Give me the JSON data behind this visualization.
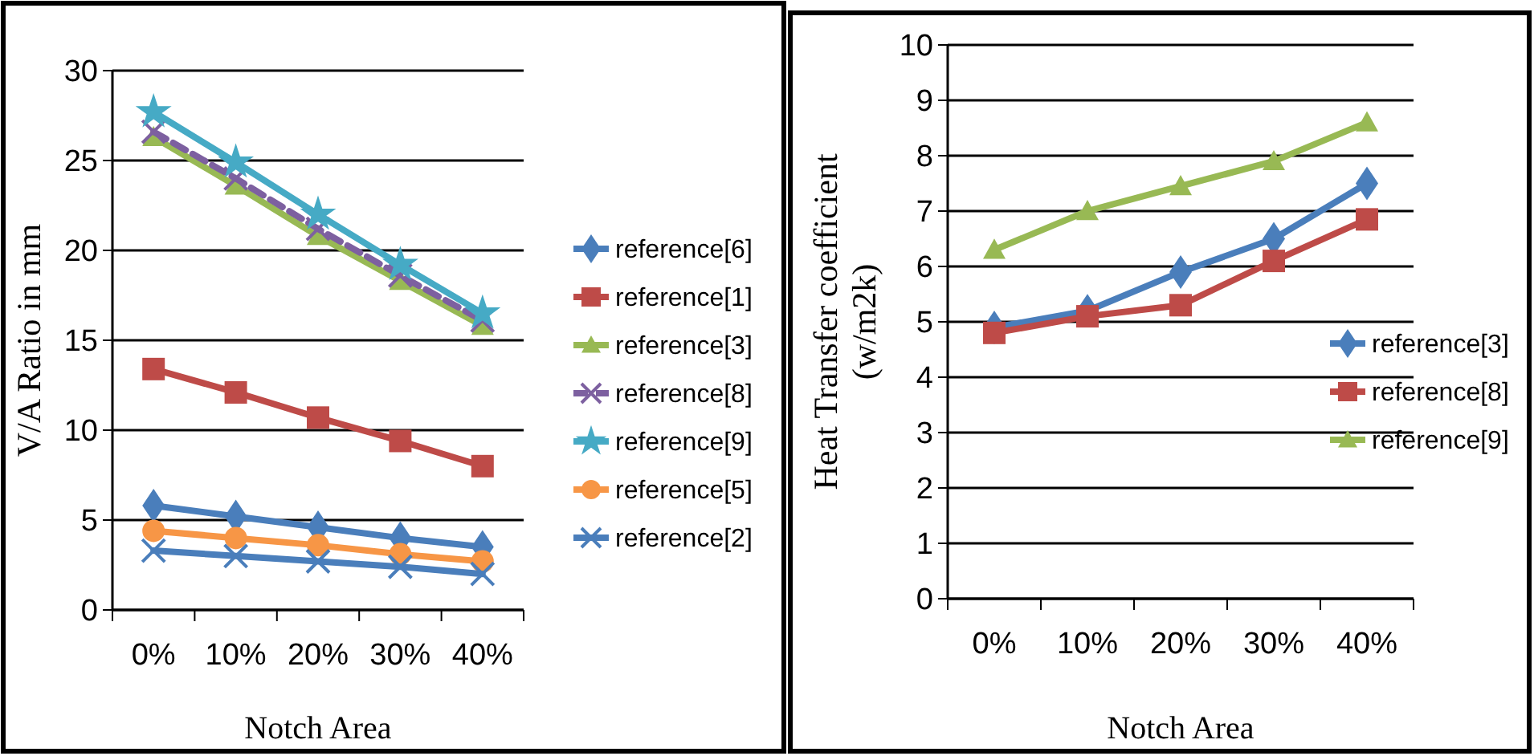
{
  "chart_data": [
    {
      "type": "line",
      "xlabel": "Notch Area",
      "ylabel": "V/A Ratio in mm",
      "categories": [
        "0%",
        "10%",
        "20%",
        "30%",
        "40%"
      ],
      "ylim": [
        0,
        30
      ],
      "yticks": [
        0,
        5,
        10,
        15,
        20,
        25,
        30
      ],
      "grid": "y",
      "legend": "right",
      "series": [
        {
          "name": "reference[6]",
          "color": "#4a7ebb",
          "marker": "diamond",
          "values": [
            5.8,
            5.2,
            4.6,
            4.0,
            3.5
          ]
        },
        {
          "name": "reference[1]",
          "color": "#be4b48",
          "marker": "square",
          "values": [
            13.4,
            12.1,
            10.7,
            9.4,
            8.0
          ]
        },
        {
          "name": "reference[3]",
          "color": "#98b954",
          "marker": "triangle",
          "values": [
            26.3,
            23.6,
            20.8,
            18.3,
            15.8
          ]
        },
        {
          "name": "reference[8]",
          "color": "#7d60a0",
          "marker": "cross",
          "line_style": "dashed",
          "values": [
            26.6,
            24.0,
            21.2,
            18.6,
            16.1
          ]
        },
        {
          "name": "reference[9]",
          "color": "#46aac5",
          "marker": "star",
          "values": [
            27.7,
            24.9,
            22.0,
            19.2,
            16.5
          ]
        },
        {
          "name": "reference[5]",
          "color": "#f79646",
          "marker": "circle",
          "values": [
            4.4,
            4.0,
            3.6,
            3.1,
            2.7
          ]
        },
        {
          "name": "reference[2]",
          "color": "#4a7ebb",
          "marker": "cross",
          "values": [
            3.3,
            3.0,
            2.7,
            2.4,
            2.0
          ]
        }
      ]
    },
    {
      "type": "line",
      "xlabel": "Notch Area",
      "ylabel": "Heat Transfer  coefficient\n(w/m2k)",
      "categories": [
        "0%",
        "10%",
        "20%",
        "30%",
        "40%"
      ],
      "ylim": [
        0,
        10
      ],
      "yticks": [
        0,
        1,
        2,
        3,
        4,
        5,
        6,
        7,
        8,
        9,
        10
      ],
      "grid": "y",
      "legend": "right",
      "series": [
        {
          "name": "reference[3]",
          "color": "#4a7ebb",
          "marker": "diamond",
          "values": [
            4.9,
            5.2,
            5.9,
            6.5,
            7.5
          ]
        },
        {
          "name": "reference[8]",
          "color": "#be4b48",
          "marker": "square",
          "values": [
            4.8,
            5.1,
            5.3,
            6.1,
            6.85
          ]
        },
        {
          "name": "reference[9]",
          "color": "#98b954",
          "marker": "triangle",
          "values": [
            6.3,
            7.0,
            7.45,
            7.9,
            8.6
          ]
        }
      ]
    }
  ]
}
